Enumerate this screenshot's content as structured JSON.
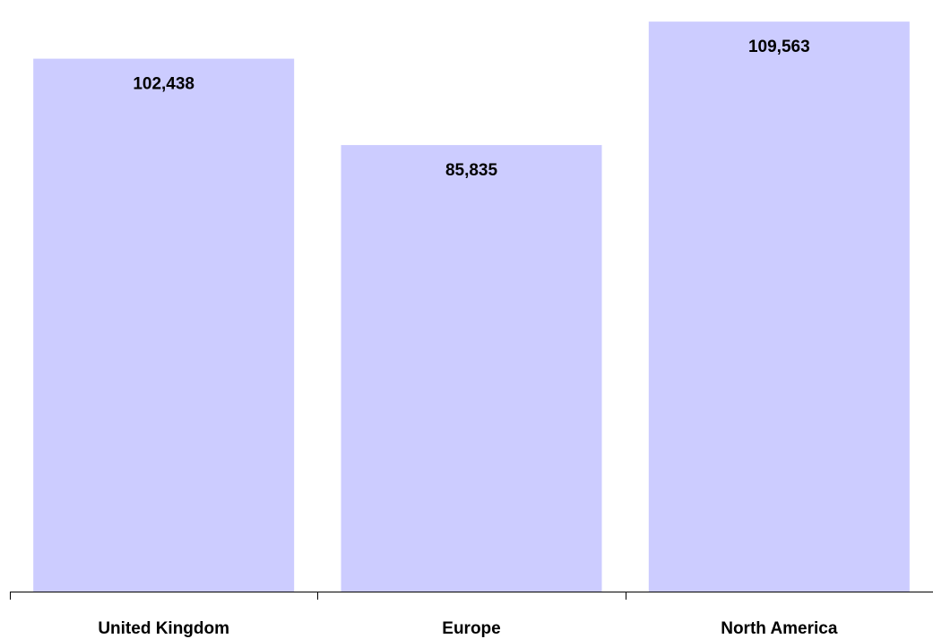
{
  "chart_data": {
    "type": "bar",
    "categories": [
      "United Kingdom",
      "Europe",
      "North America"
    ],
    "values": [
      102438,
      85835,
      109563
    ],
    "value_labels": [
      "102,438",
      "85,835",
      "109,563"
    ],
    "title": "",
    "xlabel": "",
    "ylabel": "",
    "ylim": [
      0,
      112000
    ],
    "grid": false,
    "legend": "none",
    "colors": {
      "bar": "#ccccff",
      "axis": "#000000",
      "text": "#000000"
    }
  }
}
